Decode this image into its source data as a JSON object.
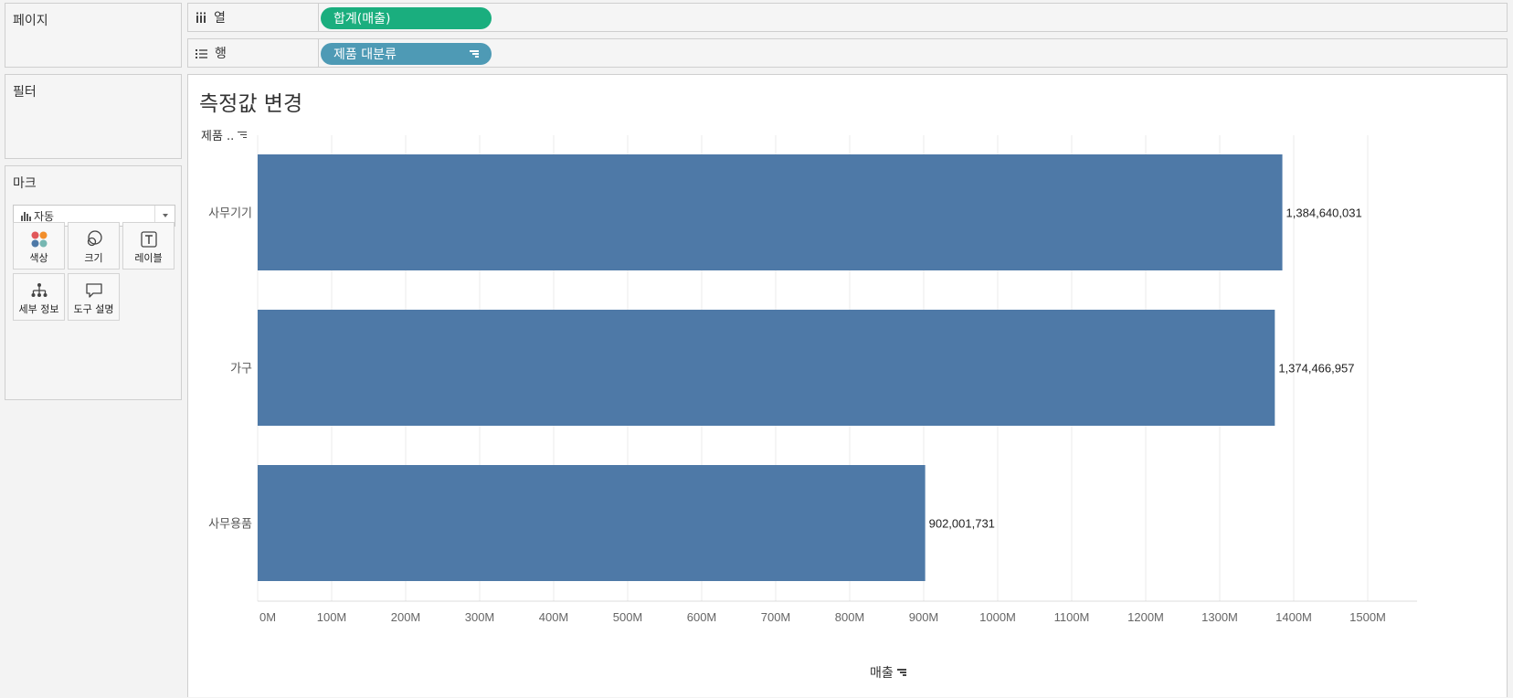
{
  "panels": {
    "pages": "페이지",
    "filters": "필터",
    "marks": "마크"
  },
  "marks": {
    "type": "자동",
    "buttons": {
      "color": "색상",
      "size": "크기",
      "label": "레이블",
      "detail": "세부 정보",
      "tooltip": "도구 설명"
    },
    "color_dots": [
      "#e15759",
      "#f28e2b",
      "#4e79a7",
      "#76b7b2"
    ]
  },
  "shelves": {
    "columns": {
      "label": "열",
      "pill": "합계(매출)"
    },
    "rows": {
      "label": "행",
      "pill": "제품 대분류"
    }
  },
  "sheet": {
    "title": "측정값 변경",
    "row_header": "제품 ..",
    "x_axis_title": "매출"
  },
  "colors": {
    "bar": "#4e79a7",
    "pill_measure": "#1aae7e",
    "pill_dimension": "#4e9ab5"
  },
  "chart_data": {
    "type": "bar",
    "orientation": "horizontal",
    "categories": [
      "사무기기",
      "가구",
      "사무용품"
    ],
    "values": [
      1384640031,
      1374466957,
      902001731
    ],
    "value_labels": [
      "1,384,640,031",
      "1,374,466,957",
      "902,001,731"
    ],
    "xlabel": "매출",
    "xlim": [
      0,
      1500000000
    ],
    "x_ticks": [
      "0M",
      "100M",
      "200M",
      "300M",
      "400M",
      "500M",
      "600M",
      "700M",
      "800M",
      "900M",
      "1000M",
      "1100M",
      "1200M",
      "1300M",
      "1400M",
      "1500M"
    ],
    "grid": "vertical"
  }
}
